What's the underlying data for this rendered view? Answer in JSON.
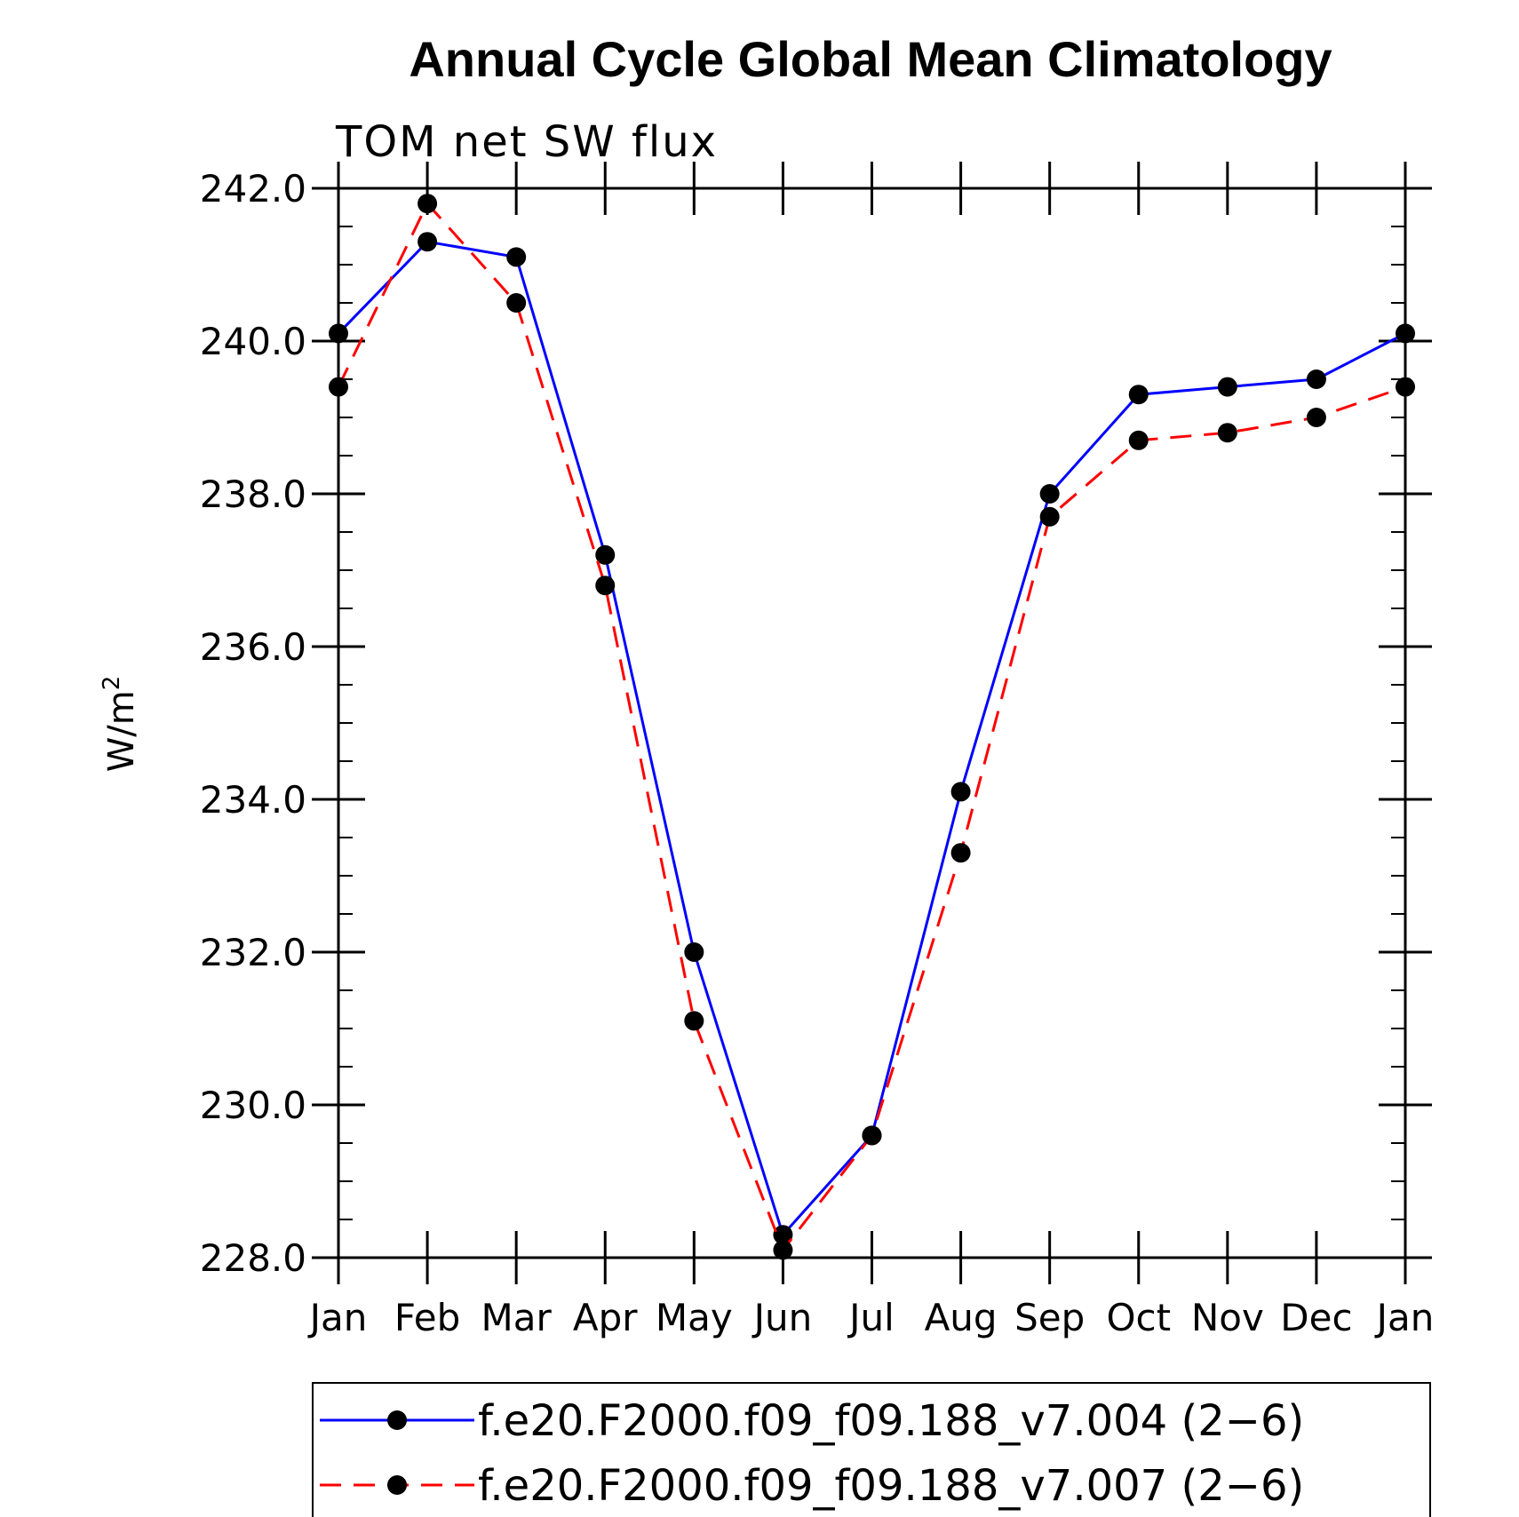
{
  "chart_data": {
    "type": "line",
    "title": "Annual Cycle Global Mean Climatology",
    "subtitle": "TOM net SW flux",
    "xlabel": "",
    "ylabel": "W/m",
    "ylabel_superscript": "2",
    "categories": [
      "Jan",
      "Feb",
      "Mar",
      "Apr",
      "May",
      "Jun",
      "Jul",
      "Aug",
      "Sep",
      "Oct",
      "Nov",
      "Dec",
      "Jan"
    ],
    "yticks": [
      "228.0",
      "230.0",
      "232.0",
      "234.0",
      "236.0",
      "238.0",
      "240.0",
      "242.0"
    ],
    "ylim": [
      228.0,
      242.0
    ],
    "grid": false,
    "legend_position": "bottom",
    "series": [
      {
        "name": "f.e20.F2000.f09_f09.188_v7.004 (2−6)",
        "color": "#0000ff",
        "line_style": "solid",
        "marker": "circle",
        "values": [
          240.1,
          241.3,
          241.1,
          237.2,
          232.0,
          228.3,
          229.6,
          234.1,
          238.0,
          239.3,
          239.4,
          239.5,
          240.1
        ]
      },
      {
        "name": "f.e20.F2000.f09_f09.188_v7.007 (2−6)",
        "color": "#ff0000",
        "line_style": "dashed",
        "marker": "circle",
        "values": [
          239.4,
          241.8,
          240.5,
          236.8,
          231.1,
          228.1,
          229.6,
          233.3,
          237.7,
          238.7,
          238.8,
          239.0,
          239.4
        ]
      }
    ]
  }
}
